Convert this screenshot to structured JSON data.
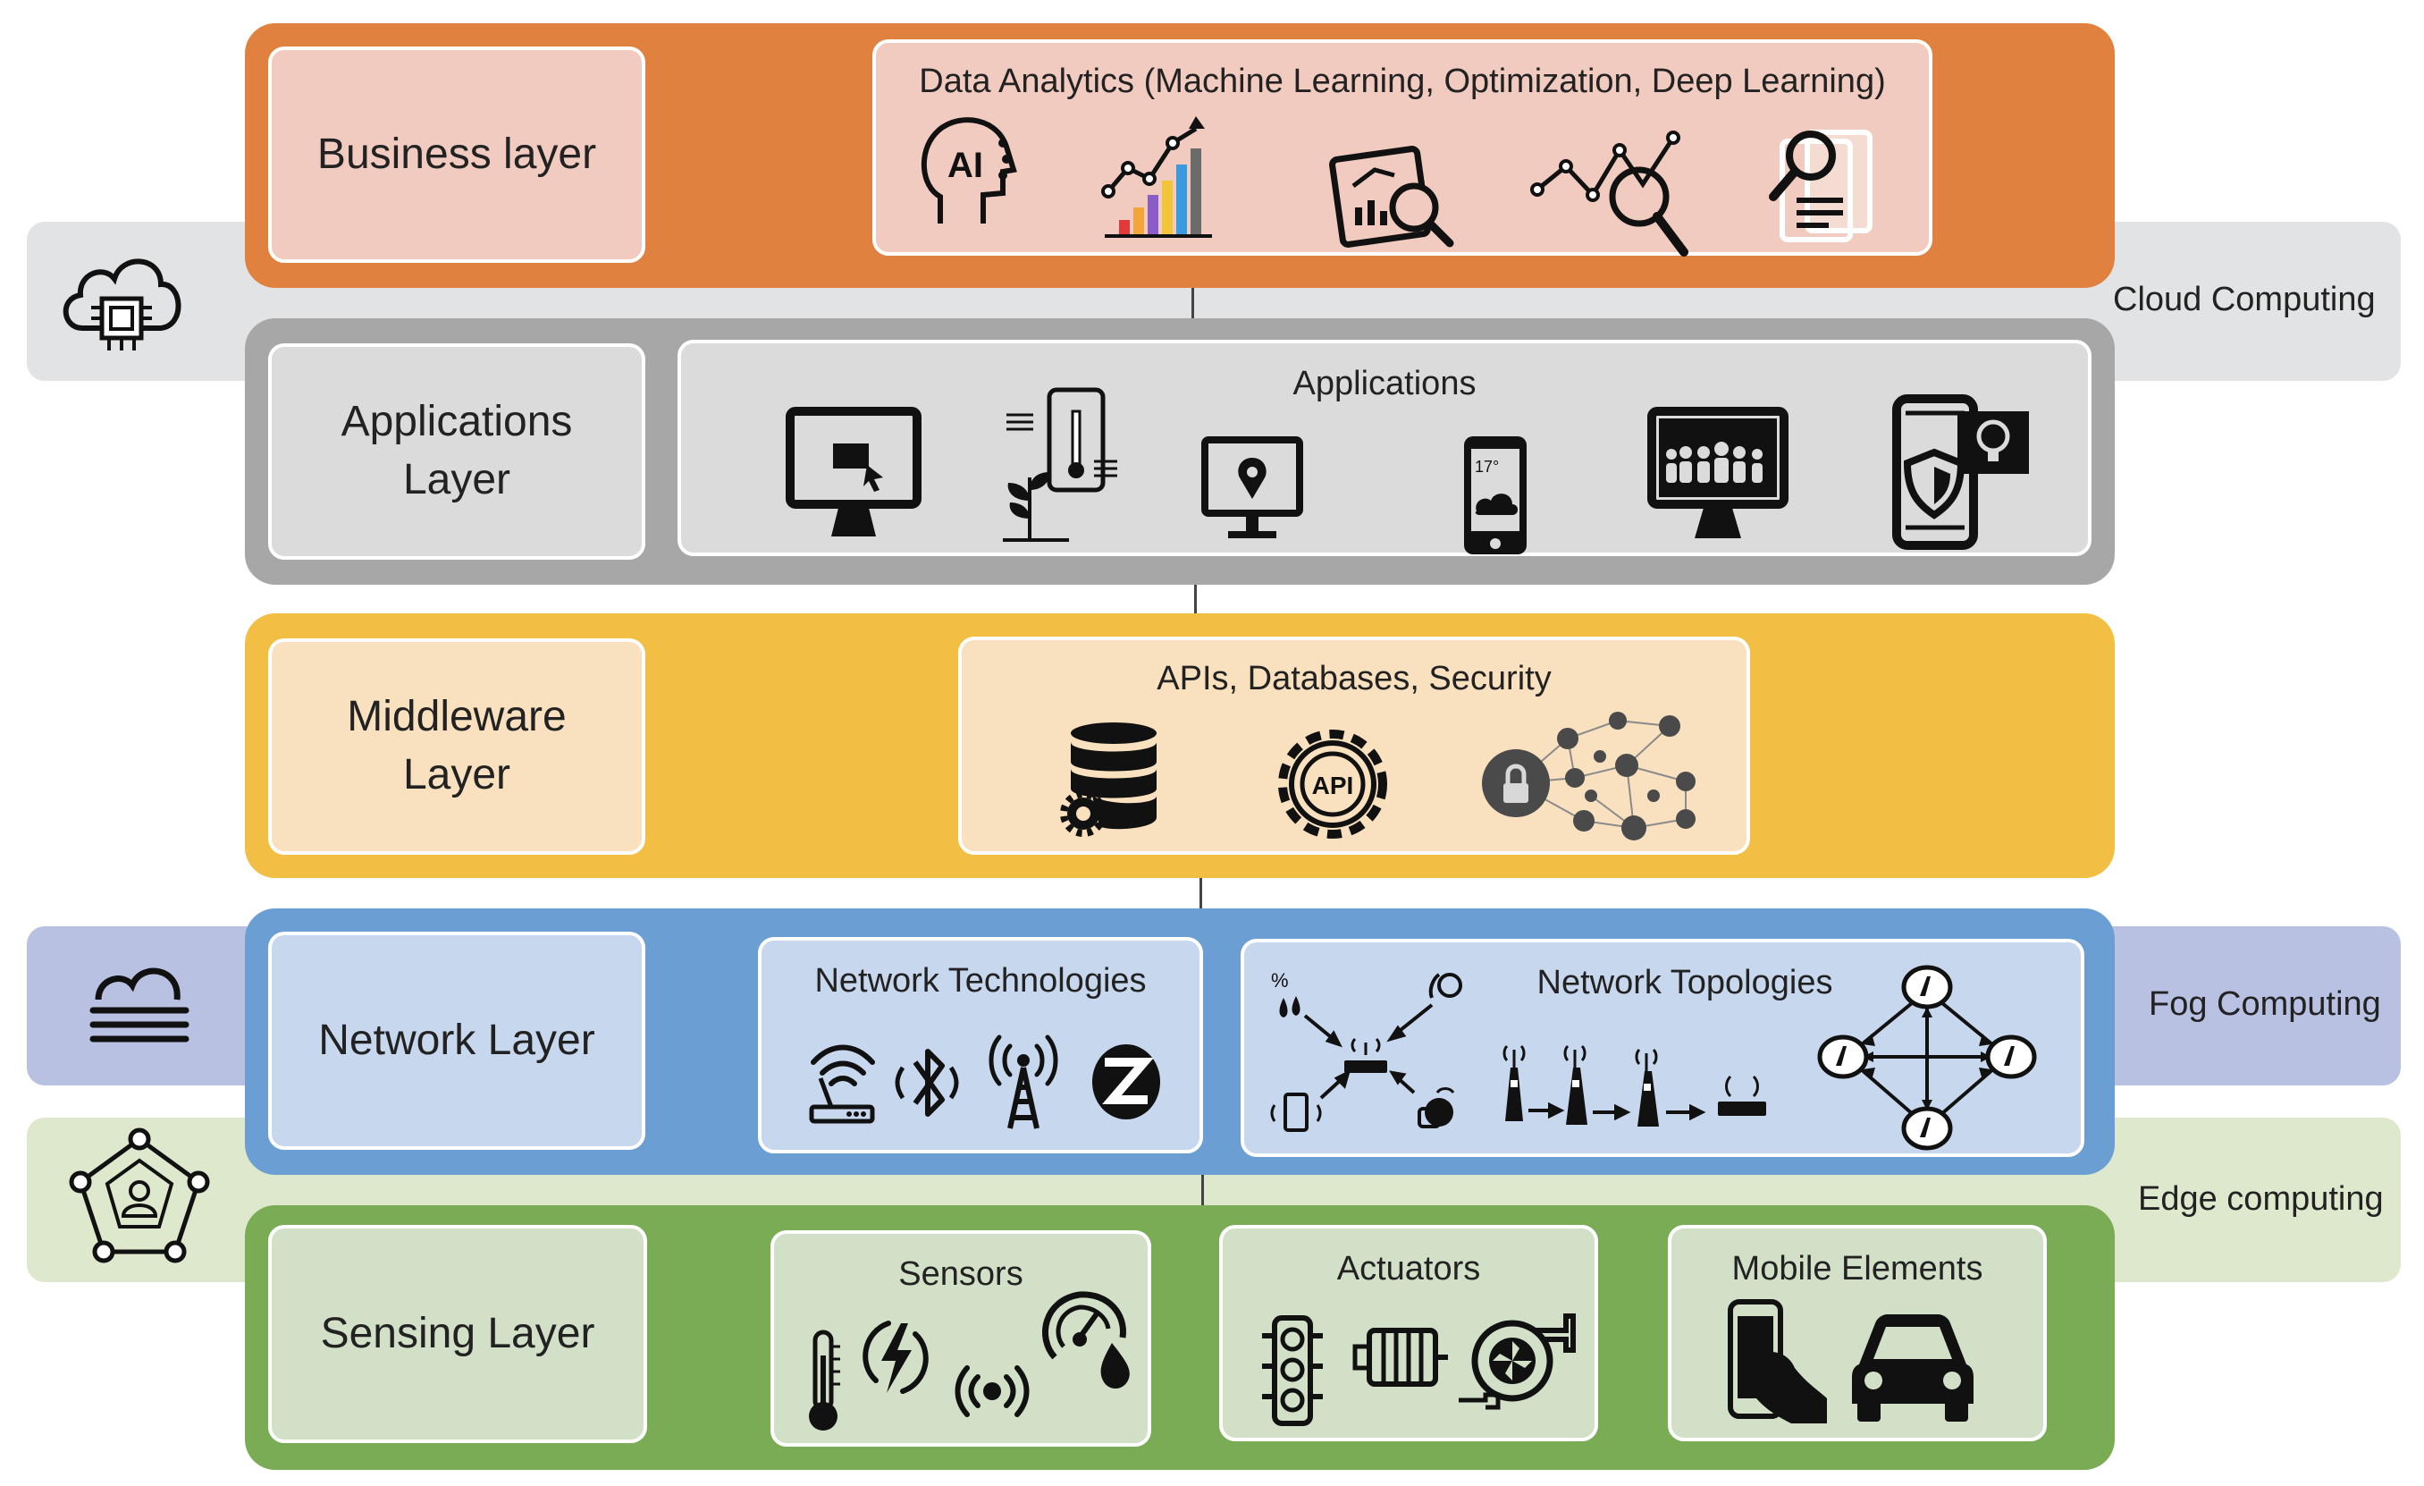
{
  "side_labels": {
    "cloud": "Cloud Computing",
    "fog": "Fog Computing",
    "edge": "Edge computing"
  },
  "layers": {
    "business": {
      "label": "Business layer",
      "panel_title": "Data Analytics (Machine Learning, Optimization, Deep Learning)",
      "ai_text": "AI"
    },
    "applications": {
      "label": "Applications\nLayer",
      "panel_title": "Applications",
      "phone_temp": "17°"
    },
    "middleware": {
      "label": "Middleware\nLayer",
      "panel_title": "APIs, Databases, Security",
      "api_text": "API"
    },
    "network": {
      "label": "Network Layer",
      "tech_title": "Network Technologies",
      "topo_title": "Network Topologies",
      "percent": "%"
    },
    "sensing": {
      "label": "Sensing Layer",
      "sensors_title": "Sensors",
      "actuators_title": "Actuators",
      "mobile_title": "Mobile Elements"
    }
  },
  "colors": {
    "business": "#e0813f",
    "applications": "#a7a7a7",
    "middleware": "#f2bf44",
    "network": "#6b9ed2",
    "sensing": "#7aac55",
    "cloud_side": "#e2e3e4",
    "fog_side": "#b9c1e2",
    "edge_side": "#dde8cc"
  },
  "icons": [
    "cloud-chip-icon",
    "fog-icon",
    "edge-network-icon",
    "ai-head-icon",
    "growth-chart-icon",
    "report-magnify-icon",
    "trend-magnify-icon",
    "document-search-icon",
    "monitor-mail-icon",
    "smart-plant-icon",
    "monitor-location-icon",
    "phone-weather-icon",
    "monitor-people-icon",
    "phone-security-icon",
    "database-gear-icon",
    "api-gear-icon",
    "iot-lock-network-icon",
    "wifi-router-icon",
    "bluetooth-icon",
    "radio-tower-icon",
    "zigbee-icon",
    "star-topology-icon",
    "chain-topology-icon",
    "mesh-topology-icon",
    "thermometer-icon",
    "lightning-icon",
    "signal-icon",
    "gauge-drop-icon",
    "traffic-light-icon",
    "motor-icon",
    "fan-pump-icon",
    "hand-phone-icon",
    "car-icon"
  ]
}
